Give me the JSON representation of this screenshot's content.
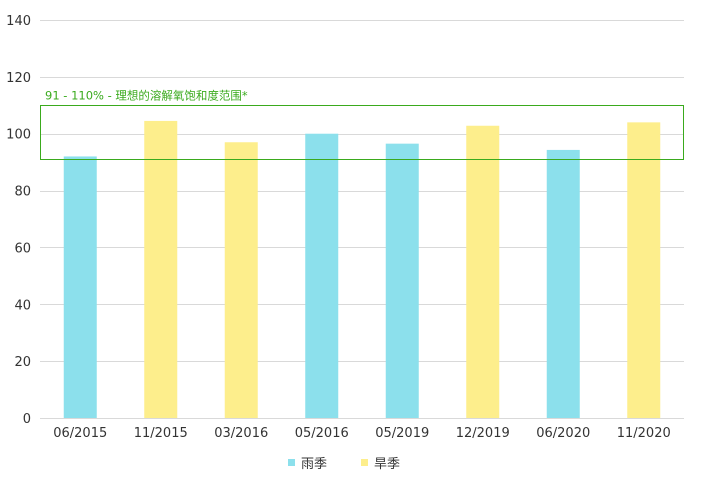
{
  "colors": {
    "rainy": "#8ce0ec",
    "dry": "#fdee8c",
    "band": "#3aaa1d",
    "grid": "#d9d9d9",
    "axis_text": "#333333"
  },
  "chart_data": {
    "type": "bar",
    "categories": [
      "06/2015",
      "11/2015",
      "03/2016",
      "05/2016",
      "05/2019",
      "12/2019",
      "06/2020",
      "11/2020"
    ],
    "values": [
      92,
      104.5,
      97,
      100,
      96.5,
      102.8,
      94.3,
      104
    ],
    "season": [
      "rainy",
      "dry",
      "dry",
      "rainy",
      "rainy",
      "dry",
      "rainy",
      "dry"
    ],
    "ylim": [
      0,
      140
    ],
    "yticks": [
      0,
      20,
      40,
      60,
      80,
      100,
      120,
      140
    ],
    "grid": true,
    "legend_position": "bottom",
    "legend": [
      {
        "key": "rainy",
        "label": "雨季"
      },
      {
        "key": "dry",
        "label": "旱季"
      }
    ],
    "reference_band": {
      "low": 91,
      "high": 110,
      "label": "91 - 110% - 理想的溶解氧饱和度范围*"
    }
  }
}
